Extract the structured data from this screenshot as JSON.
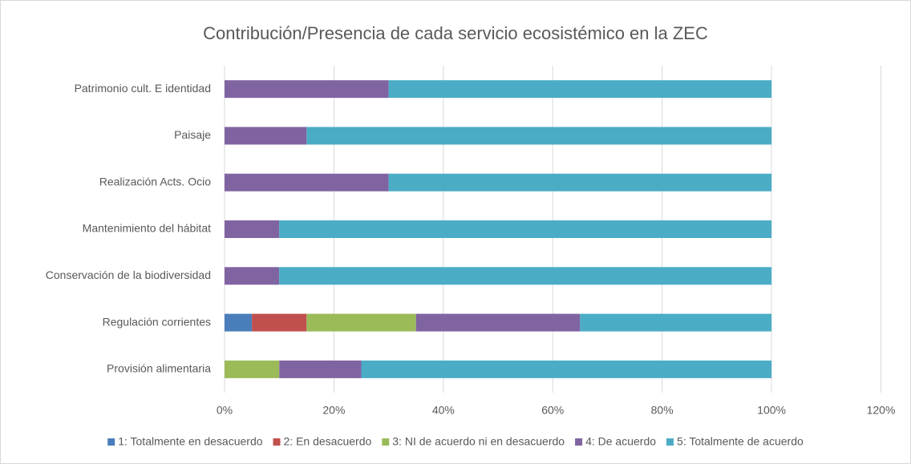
{
  "chart_data": {
    "type": "stacked_barh",
    "title": "Contribución/Presencia de cada servicio ecosistémico en la ZEC",
    "categories": [
      "Patrimonio cult. E identidad",
      "Paisaje",
      "Realización Acts. Ocio",
      "Mantenimiento del hábitat",
      "Conservación de la biodiversidad",
      "Regulación corrientes",
      "Provisión alimentaria"
    ],
    "series": [
      {
        "name": "1: Totalmente en desacuerdo",
        "color": "#4a7ebb",
        "values": [
          0,
          0,
          0,
          0,
          0,
          5,
          0
        ]
      },
      {
        "name": "2: En desacuerdo",
        "color": "#c0504d",
        "values": [
          0,
          0,
          0,
          0,
          0,
          10,
          0
        ]
      },
      {
        "name": "3: NI de acuerdo ni en desacuerdo",
        "color": "#9bbb59",
        "values": [
          0,
          0,
          0,
          0,
          0,
          20,
          10
        ]
      },
      {
        "name": "4: De acuerdo",
        "color": "#8064a2",
        "values": [
          30,
          15,
          30,
          10,
          10,
          30,
          15
        ]
      },
      {
        "name": "5: Totalmente de acuerdo",
        "color": "#4bacc6",
        "values": [
          70,
          85,
          70,
          90,
          90,
          35,
          75
        ]
      }
    ],
    "xlim": [
      0,
      120
    ],
    "xticks": [
      {
        "value": 0,
        "label": "0%"
      },
      {
        "value": 20,
        "label": "20%"
      },
      {
        "value": 40,
        "label": "40%"
      },
      {
        "value": 60,
        "label": "60%"
      },
      {
        "value": 80,
        "label": "80%"
      },
      {
        "value": 100,
        "label": "100%"
      },
      {
        "value": 120,
        "label": "120%"
      }
    ],
    "grid": true,
    "legend": "bottom"
  }
}
